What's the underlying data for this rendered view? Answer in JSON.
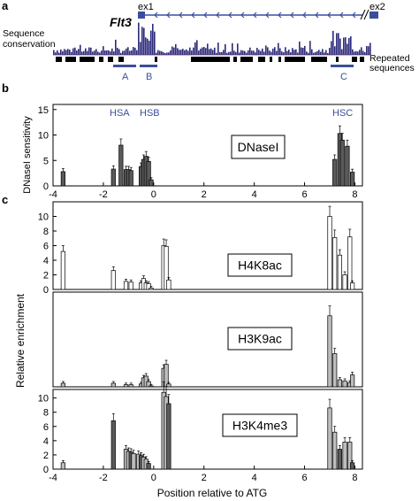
{
  "panel_labels": {
    "a": "a",
    "b": "b",
    "c": "c"
  },
  "colors": {
    "blue": "#3a4f9c",
    "dark_bar": "#5a5a5a",
    "light_bar": "#bdbdbd",
    "white_bar": "#ffffff",
    "conservation": "#2b2a7a",
    "repeat": "#000000",
    "gene_line": "#3a4f9c"
  },
  "panel_a": {
    "gene": "Flt3",
    "exon1": "ex1",
    "exon2": "ex2",
    "conservation_label_line1": "Sequence",
    "conservation_label_line2": "conservation",
    "repeated_label_line1": "Repeated",
    "repeated_label_line2": "sequences",
    "regions": [
      "A",
      "B",
      "C"
    ]
  },
  "chart_data": [
    {
      "type": "bar",
      "panel": "b",
      "ylabel": "DNaseI sensitivity",
      "xlim": [
        -4,
        8.3
      ],
      "ylim": [
        0,
        16
      ],
      "yticks": [
        0,
        5,
        10,
        15
      ],
      "xticks": [
        -4,
        -2,
        0,
        2,
        4,
        6,
        8
      ],
      "box_label": "DNaseI",
      "hs_labels": [
        "HSA",
        "HSB",
        "HSC"
      ],
      "series": [
        {
          "bar_style": "dark",
          "x": [
            -3.6,
            -1.6,
            -1.3,
            -1.1,
            -1.0,
            -0.9,
            -0.5,
            -0.4,
            -0.3,
            -0.2,
            -0.1,
            7.2,
            7.4,
            7.5,
            7.7,
            7.9
          ],
          "values": [
            2.8,
            3.3,
            8.0,
            3.2,
            3.2,
            3.0,
            3.8,
            5.2,
            5.8,
            4.8,
            1.2,
            5.2,
            10.3,
            9.0,
            7.8,
            2.7
          ]
        }
      ]
    },
    {
      "type": "bar",
      "panel": "c1",
      "xlim": [
        -4,
        8.3
      ],
      "ylim": [
        0,
        12
      ],
      "yticks": [
        0,
        2,
        4,
        6,
        8,
        10
      ],
      "box_label": "H4K8ac",
      "series": [
        {
          "bar_style": "white",
          "x": [
            -3.6,
            -1.6,
            -1.1,
            -0.9,
            -0.5,
            -0.4,
            -0.3,
            -0.2,
            -0.1,
            0.4,
            0.5,
            0.6,
            7.0,
            7.2,
            7.4,
            7.6,
            7.8,
            7.9
          ],
          "values": [
            5.2,
            2.6,
            1.1,
            1.0,
            0.9,
            1.5,
            0.9,
            0.8,
            0.2,
            6.0,
            5.9,
            1.3,
            10.0,
            7.1,
            4.7,
            2.0,
            7.2,
            0.9
          ]
        }
      ]
    },
    {
      "type": "bar",
      "panel": "c2",
      "xlim": [
        -4,
        8.3
      ],
      "ylim": [
        0,
        40
      ],
      "box_label": "H3K9ac",
      "ylabel": "Relative enrichment",
      "series": [
        {
          "bar_style": "light",
          "x": [
            -3.6,
            -1.6,
            -1.1,
            -0.9,
            -0.5,
            -0.4,
            -0.3,
            -0.2,
            -0.1,
            0.4,
            0.5,
            0.6,
            7.0,
            7.2,
            7.4,
            7.6,
            7.8,
            7.9
          ],
          "values": [
            1.5,
            1.5,
            0.9,
            0.9,
            1.2,
            3.8,
            4.5,
            2.2,
            0.4,
            7.8,
            9.5,
            1.2,
            30.0,
            14.0,
            3.0,
            2.5,
            1.8,
            5.0
          ]
        }
      ]
    },
    {
      "type": "bar",
      "panel": "c3",
      "xlabel": "Position relative to ATG",
      "xlim": [
        -4,
        8.3
      ],
      "ylim": [
        0,
        11.2
      ],
      "yticks": [
        0,
        2,
        4,
        6,
        8,
        10
      ],
      "xticks": [
        -4,
        -2,
        0,
        2,
        4,
        6,
        8
      ],
      "box_label": "H3K4me3",
      "series": [
        {
          "bar_style": "mixed",
          "x": [
            -3.6,
            -1.6,
            -1.1,
            -1.0,
            -0.9,
            -0.8,
            -0.6,
            -0.5,
            -0.4,
            -0.3,
            -0.2,
            0.4,
            0.5,
            0.6,
            7.0,
            7.2,
            7.4,
            7.6,
            7.8,
            7.9
          ],
          "values": [
            0.9,
            6.8,
            2.8,
            2.5,
            2.4,
            2.2,
            2.1,
            1.9,
            1.7,
            1.4,
            0.8,
            10.8,
            10.2,
            9.2,
            8.6,
            5.2,
            2.8,
            3.8,
            3.8,
            0.9
          ]
        }
      ]
    }
  ]
}
